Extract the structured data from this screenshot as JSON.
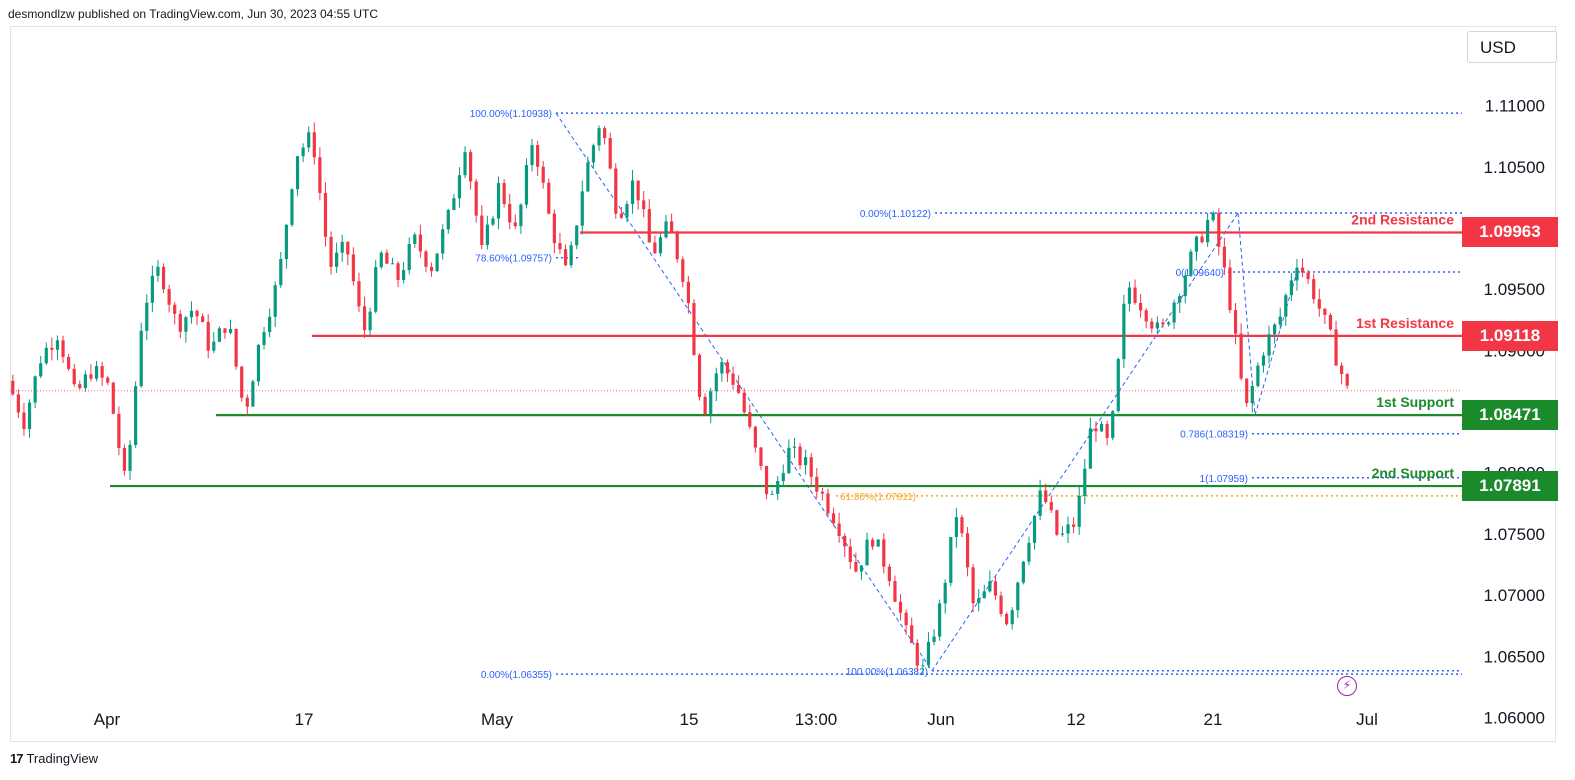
{
  "header": {
    "publisher_text": "desmondlzw published on TradingView.com, Jun 30, 2023 04:55 UTC"
  },
  "footer": {
    "brand_logo": "17",
    "brand_name": "TradingView"
  },
  "currency": "USD",
  "colors": {
    "bull": "#089981",
    "bear": "#f23645",
    "resistance": "#f23645",
    "support": "#1b8a2a",
    "fib": "#2962ff",
    "golden": "#f5a623",
    "price_line": "#f23645"
  },
  "chart_data": {
    "type": "candlestick",
    "symbol_price_axis": "1.11500 .. 1.06000",
    "x_labels": [
      "Apr",
      "17",
      "May",
      "15",
      "13:00",
      "Jun",
      "12",
      "21",
      "Jul"
    ],
    "ylim": [
      1.058,
      1.1165
    ],
    "y_ticks": [
      "1.11000",
      "1.10500",
      "1.09500",
      "1.09000",
      "1.08000",
      "1.07500",
      "1.07000",
      "1.06500",
      "1.06000"
    ],
    "last_price": 1.0867,
    "levels": [
      {
        "name": "2nd Resistance",
        "price": 1.09963,
        "value_label": "1.09963",
        "kind": "resistance"
      },
      {
        "name": "1st Resistance",
        "price": 1.09118,
        "value_label": "1.09118",
        "kind": "resistance"
      },
      {
        "name": "1st Support",
        "price": 1.08471,
        "value_label": "1.08471",
        "kind": "support"
      },
      {
        "name": "2nd Support",
        "price": 1.07891,
        "value_label": "1.07891",
        "kind": "support"
      }
    ],
    "fib_annotations": [
      {
        "text": "100.00%(1.10938)",
        "price": 1.10938
      },
      {
        "text": "78.60%(1.09757)",
        "price": 1.09757
      },
      {
        "text": "0.00%(1.10122)",
        "price": 1.10122
      },
      {
        "text": "0(1.09640)",
        "price": 1.0964
      },
      {
        "text": "0.786(1.08319)",
        "price": 1.08319
      },
      {
        "text": "1(1.07959)",
        "price": 1.07959
      },
      {
        "text": "61.80%(1.07811)",
        "price": 1.07811
      },
      {
        "text": "100.00%(1.06382)",
        "price": 1.06382
      },
      {
        "text": "0.00%(1.06355)",
        "price": 1.06355
      }
    ],
    "price_path": [
      1.0875,
      1.0842,
      1.0895,
      1.0915,
      1.0862,
      1.0885,
      1.087,
      1.0787,
      1.0935,
      1.0968,
      1.092,
      1.0935,
      1.09,
      1.0925,
      1.0848,
      1.0915,
      1.0958,
      1.106,
      1.1075,
      1.0968,
      1.0985,
      1.0913,
      1.0978,
      1.0958,
      1.099,
      1.0968,
      1.1008,
      1.107,
      1.0978,
      1.1035,
      1.0995,
      1.1075,
      1.1005,
      1.096,
      1.104,
      1.109,
      1.101,
      1.104,
      1.0978,
      1.1002,
      1.0955,
      1.0848,
      1.089,
      1.0872,
      1.0822,
      1.0775,
      1.0818,
      1.0808,
      1.0783,
      1.0758,
      1.072,
      1.0748,
      1.0718,
      1.0668,
      1.0638,
      1.069,
      1.077,
      1.0688,
      1.0708,
      1.0678,
      1.0738,
      1.0785,
      1.0745,
      1.076,
      1.0845,
      1.082,
      1.0955,
      1.0935,
      1.0912,
      1.0948,
      1.0982,
      1.1012,
      1.0948,
      1.0849,
      1.09,
      1.0925,
      1.0975,
      1.0948,
      1.091,
      1.0867
    ]
  }
}
